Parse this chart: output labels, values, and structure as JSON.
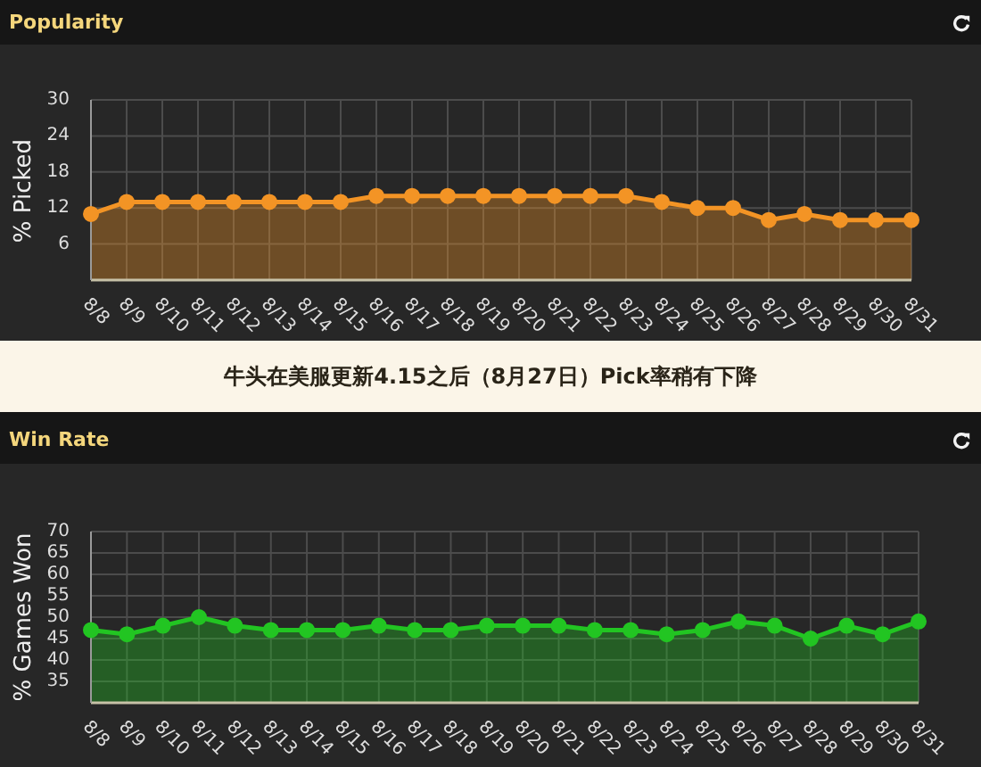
{
  "chart_data": [
    {
      "type": "area",
      "title": "Popularity",
      "ylabel": "% Picked",
      "categories": [
        "8/8",
        "8/9",
        "8/10",
        "8/11",
        "8/12",
        "8/13",
        "8/14",
        "8/15",
        "8/16",
        "8/17",
        "8/18",
        "8/19",
        "8/20",
        "8/21",
        "8/22",
        "8/23",
        "8/24",
        "8/25",
        "8/26",
        "8/27",
        "8/28",
        "8/29",
        "8/30",
        "8/31"
      ],
      "series": [
        {
          "color": "#f39425",
          "values": [
            11,
            13,
            13,
            13,
            13,
            13,
            13,
            13,
            14,
            14,
            14,
            14,
            14,
            14,
            14,
            14,
            13,
            12,
            12,
            10,
            11,
            10,
            10,
            10
          ]
        }
      ],
      "ylim": [
        0,
        30
      ],
      "yticks": [
        6,
        12,
        18,
        24,
        30
      ],
      "grid": true,
      "marker": "circle",
      "annotations": [
        "牛头在美服更新4.15之后（8月27日）Pick率稍有下降"
      ]
    },
    {
      "type": "area",
      "title": "Win Rate",
      "ylabel": "% Games Won",
      "categories": [
        "8/8",
        "8/9",
        "8/10",
        "8/11",
        "8/12",
        "8/13",
        "8/14",
        "8/15",
        "8/16",
        "8/17",
        "8/18",
        "8/19",
        "8/20",
        "8/21",
        "8/22",
        "8/23",
        "8/24",
        "8/25",
        "8/26",
        "8/27",
        "8/28",
        "8/29",
        "8/30",
        "8/31"
      ],
      "series": [
        {
          "color": "#22c522",
          "values": [
            47,
            46,
            48,
            50,
            48,
            47,
            47,
            47,
            48,
            47,
            47,
            48,
            48,
            48,
            47,
            47,
            46,
            47,
            49,
            48,
            45,
            48,
            46,
            49
          ]
        }
      ],
      "ylim": [
        30,
        70
      ],
      "yticks": [
        35,
        40,
        45,
        50,
        55,
        60,
        65,
        70
      ],
      "grid": true,
      "marker": "circle"
    }
  ]
}
